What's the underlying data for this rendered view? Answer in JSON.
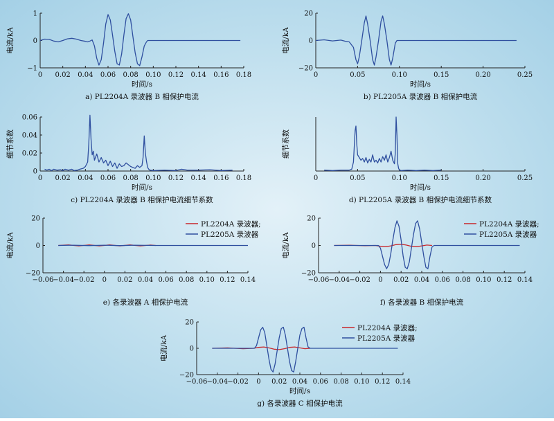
{
  "chart_data": [
    {
      "id": "a",
      "type": "line",
      "caption": "a) PL2204A 录波器 B 相保护电流",
      "xlabel": "时间/s",
      "ylabel": "电流/kA",
      "xlim": [
        0,
        0.18
      ],
      "ylim": [
        -1,
        1
      ],
      "xticks": [
        0,
        0.02,
        0.04,
        0.06,
        0.08,
        0.1,
        0.12,
        0.14,
        0.16,
        0.18
      ],
      "xtick_labels": [
        "0",
        "0.02",
        "0.04",
        "0.06",
        "0.08",
        "0.10",
        "0.12",
        "0.14",
        "0.16",
        "0.18"
      ],
      "yticks": [
        -1,
        0,
        1
      ],
      "ytick_labels": [
        "−1",
        "0",
        "1"
      ],
      "series": [
        {
          "color": "#2f4f9f",
          "x": [
            0,
            0.004,
            0.008,
            0.012,
            0.016,
            0.02,
            0.024,
            0.028,
            0.032,
            0.036,
            0.04,
            0.042,
            0.044,
            0.046,
            0.048,
            0.05,
            0.052,
            0.054,
            0.056,
            0.058,
            0.06,
            0.062,
            0.064,
            0.066,
            0.068,
            0.07,
            0.072,
            0.074,
            0.076,
            0.078,
            0.08,
            0.082,
            0.084,
            0.086,
            0.088,
            0.09,
            0.092,
            0.094,
            0.095,
            0.1,
            0.12,
            0.14,
            0.16,
            0.177
          ],
          "y": [
            0,
            0.05,
            0.04,
            -0.02,
            -0.05,
            0,
            0.06,
            0.08,
            0.05,
            0,
            -0.03,
            -0.05,
            -0.02,
            0.02,
            -0.2,
            -0.65,
            -0.9,
            -0.7,
            -0.1,
            0.6,
            0.95,
            0.75,
            0.2,
            -0.4,
            -0.85,
            -0.9,
            -0.5,
            0.2,
            0.8,
            0.98,
            0.75,
            0.15,
            -0.45,
            -0.85,
            -0.92,
            -0.6,
            -0.2,
            -0.05,
            0,
            0,
            0,
            0,
            0,
            0
          ]
        }
      ]
    },
    {
      "id": "b",
      "type": "line",
      "caption": "b) PL2205A 录波器 B 相保护电流",
      "xlabel": "时间/s",
      "ylabel": "电流/kA",
      "xlim": [
        0,
        0.25
      ],
      "ylim": [
        -20,
        20
      ],
      "xticks": [
        0,
        0.05,
        0.1,
        0.15,
        0.2,
        0.25
      ],
      "xtick_labels": [
        "0",
        "0.05",
        "0.10",
        "0.15",
        "0.20",
        "0.25"
      ],
      "yticks": [
        -20,
        0,
        20
      ],
      "ytick_labels": [
        "−20",
        "0",
        "20"
      ],
      "series": [
        {
          "color": "#2f4f9f",
          "x": [
            0,
            0.01,
            0.02,
            0.03,
            0.035,
            0.04,
            0.045,
            0.048,
            0.05,
            0.052,
            0.055,
            0.058,
            0.06,
            0.062,
            0.065,
            0.068,
            0.07,
            0.072,
            0.075,
            0.078,
            0.08,
            0.082,
            0.085,
            0.088,
            0.09,
            0.092,
            0.095,
            0.097,
            0.1,
            0.15,
            0.2,
            0.24
          ],
          "y": [
            0,
            0.5,
            -0.3,
            0.3,
            -0.5,
            -1,
            -5,
            -14,
            -17,
            -12,
            0,
            13,
            18,
            12,
            0,
            -14,
            -18,
            -12,
            0,
            14,
            18,
            12,
            0,
            -14,
            -18,
            -13,
            -2,
            0,
            0,
            0,
            0,
            0
          ]
        }
      ]
    },
    {
      "id": "c",
      "type": "line",
      "caption": "c) PL2204A 录波器 B 相保护电流细节系数",
      "xlabel": "时间/s",
      "ylabel": "细节系数",
      "xlim": [
        0,
        0.18
      ],
      "ylim": [
        0,
        0.06
      ],
      "xticks": [
        0,
        0.02,
        0.04,
        0.06,
        0.08,
        0.1,
        0.12,
        0.14,
        0.16,
        0.18
      ],
      "xtick_labels": [
        "0",
        "0.02",
        "0.04",
        "0.06",
        "0.08",
        "0.10",
        "0.12",
        "0.14",
        "0.16",
        "0.18"
      ],
      "yticks": [
        0,
        0.02,
        0.04,
        0.06
      ],
      "ytick_labels": [
        "0",
        "0.02",
        "0.04",
        "0.06"
      ],
      "series": [
        {
          "color": "#2f4f9f",
          "x": [
            0.004,
            0.006,
            0.008,
            0.01,
            0.012,
            0.015,
            0.018,
            0.02,
            0.022,
            0.025,
            0.028,
            0.03,
            0.033,
            0.035,
            0.038,
            0.04,
            0.042,
            0.043,
            0.044,
            0.045,
            0.046,
            0.047,
            0.048,
            0.05,
            0.052,
            0.054,
            0.056,
            0.058,
            0.06,
            0.062,
            0.064,
            0.066,
            0.068,
            0.07,
            0.072,
            0.074,
            0.076,
            0.078,
            0.08,
            0.082,
            0.084,
            0.086,
            0.088,
            0.09,
            0.091,
            0.092,
            0.093,
            0.094,
            0.095,
            0.096,
            0.097,
            0.1,
            0.11,
            0.12,
            0.125,
            0.13,
            0.14,
            0.15,
            0.16,
            0.17
          ],
          "y": [
            0.002,
            0.001,
            0.002,
            0.0005,
            0.002,
            0.001,
            0.0015,
            0.0005,
            0.002,
            0.001,
            0.002,
            0.0005,
            0.001,
            0.002,
            0.003,
            0.005,
            0.01,
            0.03,
            0.062,
            0.035,
            0.018,
            0.022,
            0.012,
            0.019,
            0.01,
            0.015,
            0.009,
            0.012,
            0.006,
            0.011,
            0.005,
            0.009,
            0.003,
            0.008,
            0.005,
            0.006,
            0.009,
            0.007,
            0.005,
            0.004,
            0.003,
            0.006,
            0.004,
            0.006,
            0.015,
            0.039,
            0.02,
            0.011,
            0.004,
            0.002,
            0.001,
            0.0005,
            0.001,
            0.0005,
            0.002,
            0.001,
            0.001,
            0.0015,
            0.0005,
            0.001
          ]
        }
      ]
    },
    {
      "id": "d",
      "type": "line",
      "caption": "d) PL2205A 录波器 B 相保护电流细节系数",
      "xlabel": "时间/s",
      "ylabel": "细节系数",
      "xlim": [
        0,
        0.25
      ],
      "ylim": [
        0,
        0.06
      ],
      "xticks": [
        0,
        0.05,
        0.1,
        0.15,
        0.2,
        0.25
      ],
      "xtick_labels": [
        "0",
        "0.05",
        "0.10",
        "0.15",
        "0.20",
        "0.25"
      ],
      "yticks": [],
      "ytick_labels": [],
      "series": [
        {
          "color": "#2f4f9f",
          "x": [
            0.01,
            0.02,
            0.03,
            0.04,
            0.043,
            0.045,
            0.047,
            0.048,
            0.049,
            0.05,
            0.052,
            0.054,
            0.056,
            0.058,
            0.06,
            0.062,
            0.064,
            0.066,
            0.068,
            0.07,
            0.072,
            0.074,
            0.076,
            0.078,
            0.08,
            0.082,
            0.084,
            0.086,
            0.088,
            0.09,
            0.092,
            0.094,
            0.095,
            0.096,
            0.097,
            0.098,
            0.099,
            0.1,
            0.102,
            0.11,
            0.12,
            0.13,
            0.14,
            0.15
          ],
          "y": [
            0.001,
            0.0005,
            0.001,
            0.001,
            0.002,
            0.01,
            0.045,
            0.05,
            0.03,
            0.018,
            0.015,
            0.012,
            0.014,
            0.01,
            0.015,
            0.009,
            0.013,
            0.01,
            0.018,
            0.01,
            0.012,
            0.009,
            0.014,
            0.01,
            0.016,
            0.012,
            0.018,
            0.01,
            0.015,
            0.022,
            0.012,
            0.008,
            0.02,
            0.06,
            0.04,
            0.008,
            0.003,
            0.001,
            0.0005,
            0.001,
            0.0005,
            0.001,
            0.0005,
            0.001
          ]
        }
      ]
    },
    {
      "id": "e",
      "type": "line",
      "caption": "e) 各录波器 A 相保护电流",
      "xlabel": "",
      "ylabel": "电流/kA",
      "xlim": [
        -0.06,
        0.14
      ],
      "ylim": [
        -20,
        20
      ],
      "xticks": [
        -0.06,
        -0.04,
        -0.02,
        0,
        0.02,
        0.04,
        0.06,
        0.08,
        0.1,
        0.12,
        0.14
      ],
      "xtick_labels": [
        "−0.06",
        "−0.04",
        "−0.02",
        "0",
        "0.02",
        "0.04",
        "0.06",
        "0.08",
        "0.10",
        "0.12",
        "0.14"
      ],
      "yticks": [
        -20,
        0,
        20
      ],
      "ytick_labels": [
        "−20",
        "0",
        "20"
      ],
      "legend": [
        "PL2204A 录波器;",
        "PL2205A 录波器"
      ],
      "series": [
        {
          "name": "PL2204A 录波器;",
          "color": "#c8282c",
          "x": [
            -0.045,
            -0.035,
            -0.025,
            -0.015,
            -0.005,
            0.005,
            0.015,
            0.025,
            0.035,
            0.045,
            0.05
          ],
          "y": [
            0,
            0.4,
            -0.3,
            0.4,
            -0.3,
            0.4,
            -0.3,
            0.4,
            -0.3,
            0.3,
            0
          ]
        },
        {
          "name": "PL2205A 录波器",
          "color": "#2f4f9f",
          "x": [
            -0.045,
            -0.03,
            -0.015,
            0,
            0.015,
            0.03,
            0.05,
            0.08,
            0.11,
            0.14
          ],
          "y": [
            0,
            0.2,
            -0.1,
            0.2,
            -0.1,
            0.2,
            0,
            0,
            0,
            0
          ]
        }
      ]
    },
    {
      "id": "f",
      "type": "line",
      "caption": "f) 各录波器 B 相保护电流",
      "xlabel": "",
      "ylabel": "电流/kA",
      "xlim": [
        -0.06,
        0.14
      ],
      "ylim": [
        -20,
        20
      ],
      "xticks": [
        -0.06,
        -0.04,
        -0.02,
        0,
        0.02,
        0.04,
        0.06,
        0.08,
        0.1,
        0.12,
        0.14
      ],
      "xtick_labels": [
        "−0.06",
        "−0.04",
        "−0.02",
        "0",
        "0.02",
        "0.04",
        "0.06",
        "0.08",
        "0.10",
        "0.12",
        "0.14"
      ],
      "yticks": [
        -20,
        0,
        20
      ],
      "ytick_labels": [
        "−20",
        "0",
        "20"
      ],
      "legend": [
        "PL2204A 录波器;",
        "PL2205A 录波器"
      ],
      "series": [
        {
          "name": "PL2204A 录波器;",
          "color": "#c8282c",
          "x": [
            -0.045,
            -0.03,
            -0.015,
            -0.005,
            0,
            0.005,
            0.01,
            0.015,
            0.02,
            0.025,
            0.03,
            0.035,
            0.04,
            0.045,
            0.05
          ],
          "y": [
            0,
            0.2,
            -0.2,
            0,
            -0.6,
            -0.9,
            -0.3,
            0.6,
            0.9,
            0.3,
            -0.6,
            -0.9,
            -0.3,
            0.3,
            0
          ]
        },
        {
          "name": "PL2205A 录波器",
          "color": "#2f4f9f",
          "x": [
            -0.045,
            -0.02,
            -0.002,
            0,
            0.002,
            0.004,
            0.006,
            0.008,
            0.01,
            0.012,
            0.014,
            0.016,
            0.018,
            0.02,
            0.022,
            0.024,
            0.026,
            0.028,
            0.03,
            0.032,
            0.034,
            0.036,
            0.038,
            0.04,
            0.042,
            0.044,
            0.046,
            0.048,
            0.05,
            0.052,
            0.08,
            0.11,
            0.135
          ],
          "y": [
            0,
            0,
            0,
            -2,
            -8,
            -14,
            -17,
            -14,
            -6,
            4,
            13,
            18,
            14,
            4,
            -8,
            -16,
            -17,
            -12,
            -2,
            8,
            16,
            18,
            12,
            2,
            -8,
            -16,
            -17,
            -8,
            -1,
            0,
            0,
            0,
            0
          ]
        }
      ]
    },
    {
      "id": "g",
      "type": "line",
      "caption": "g) 各录波器 C 相保护电流",
      "xlabel": "时间/s",
      "ylabel": "电流/kA",
      "xlim": [
        -0.06,
        0.14
      ],
      "ylim": [
        -20,
        20
      ],
      "xticks": [
        -0.06,
        -0.04,
        -0.02,
        0,
        0.02,
        0.04,
        0.06,
        0.08,
        0.1,
        0.12,
        0.14
      ],
      "xtick_labels": [
        "−0.06",
        "−0.04",
        "−0.02",
        "0",
        "0.02",
        "0.04",
        "0.06",
        "0.08",
        "0.10",
        "0.12",
        "0.14"
      ],
      "yticks": [
        -20,
        0,
        20
      ],
      "ytick_labels": [
        "−20",
        "0",
        "20"
      ],
      "legend": [
        "PL2204A 录波器;",
        "PL2205A 录波器"
      ],
      "series": [
        {
          "name": "PL2204A 录波器;",
          "color": "#c8282c",
          "x": [
            -0.045,
            -0.03,
            -0.015,
            -0.005,
            0,
            0.005,
            0.01,
            0.015,
            0.02,
            0.025,
            0.03,
            0.035,
            0.04,
            0.045,
            0.05
          ],
          "y": [
            0,
            0.3,
            -0.3,
            0,
            0.7,
            1,
            0.3,
            -0.7,
            -1,
            -0.3,
            0.7,
            1,
            0.3,
            -0.3,
            0
          ]
        },
        {
          "name": "PL2205A 录波器",
          "color": "#2f4f9f",
          "x": [
            -0.045,
            -0.02,
            -0.004,
            -0.002,
            0,
            0.002,
            0.004,
            0.006,
            0.008,
            0.01,
            0.012,
            0.014,
            0.016,
            0.018,
            0.02,
            0.022,
            0.024,
            0.026,
            0.028,
            0.03,
            0.032,
            0.034,
            0.036,
            0.038,
            0.04,
            0.042,
            0.044,
            0.046,
            0.048,
            0.05,
            0.052,
            0.08,
            0.11,
            0.135
          ],
          "y": [
            0,
            0,
            0,
            2,
            8,
            14,
            16,
            12,
            2,
            -8,
            -16,
            -18,
            -12,
            -2,
            8,
            15,
            16,
            10,
            0,
            -10,
            -17,
            -18,
            -10,
            0,
            10,
            15,
            16,
            8,
            1,
            0,
            0,
            0,
            0,
            0
          ]
        }
      ]
    }
  ]
}
